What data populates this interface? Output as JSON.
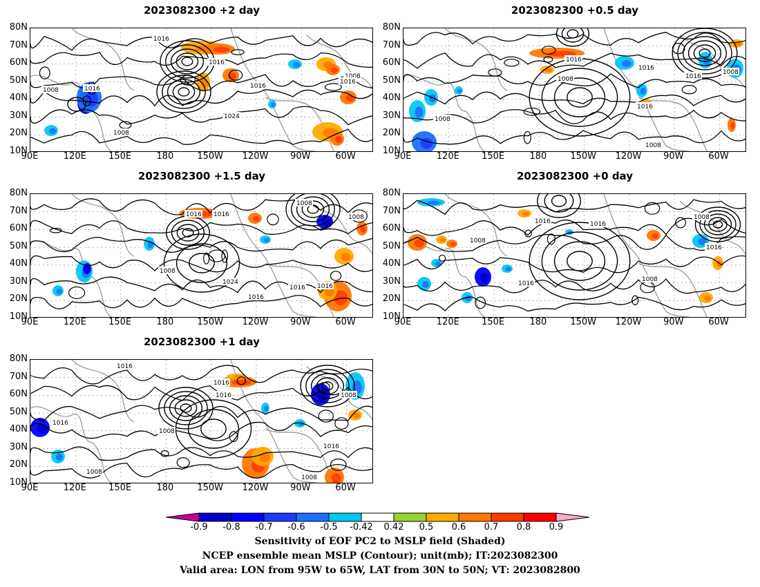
{
  "panels": [
    {
      "id": "p2",
      "title": "2023082300 +2 day",
      "contour_labels": [
        "1016",
        "1016",
        "1016",
        "1016",
        "1008",
        "1008",
        "1024",
        "1008",
        "1016"
      ]
    },
    {
      "id": "p05",
      "title": "2023082300 +0.5 day",
      "contour_labels": [
        "1016",
        "1008",
        "1016",
        "1016",
        "1008",
        "1016",
        "1008",
        "1008"
      ]
    },
    {
      "id": "p15",
      "title": "2023082300 +1.5 day",
      "contour_labels": [
        "1016",
        "1016",
        "1008",
        "1008",
        "1008",
        "1024",
        "1016",
        "1016",
        "1016"
      ]
    },
    {
      "id": "p0",
      "title": "2023082300 +0 day",
      "contour_labels": [
        "1016",
        "1016",
        "1008",
        "1008",
        "1016",
        "1016",
        "1008"
      ]
    },
    {
      "id": "p1",
      "title": "2023082300 +1 day",
      "contour_labels": [
        "1016",
        "1016",
        "1016",
        "1016",
        "1008",
        "1008",
        "1016",
        "1008",
        "1008"
      ]
    }
  ],
  "axes": {
    "y_ticks": [
      "80N",
      "70N",
      "60N",
      "50N",
      "40N",
      "30N",
      "20N",
      "10N"
    ],
    "x_ticks": [
      "90E",
      "120E",
      "150E",
      "180",
      "150W",
      "120W",
      "90W",
      "60W"
    ]
  },
  "colorbar": {
    "labels": [
      "-0.9",
      "-0.8",
      "-0.7",
      "-0.6",
      "-0.5",
      "-0.42",
      "0.42",
      "0.5",
      "0.6",
      "0.7",
      "0.8",
      "0.9"
    ],
    "colors": [
      "#0000c8",
      "#0000ff",
      "#1a3cff",
      "#1e6eff",
      "#00c8f0",
      "#ffffff",
      "#96d232",
      "#ffaa00",
      "#ff7800",
      "#ff3c00",
      "#ff0000"
    ],
    "under_color": "#c8009b",
    "over_color": "#ffaacc"
  },
  "footer": {
    "line1": "Sensitivity of EOF PC2 to MSLP field (Shaded)",
    "line2": "NCEP ensemble mean MSLP (Contour); unit(mb); IT:2023082300",
    "line3": "Valid area: LON from 95W to 65W, LAT from 30N to 50N; VT: 2023082800"
  }
}
